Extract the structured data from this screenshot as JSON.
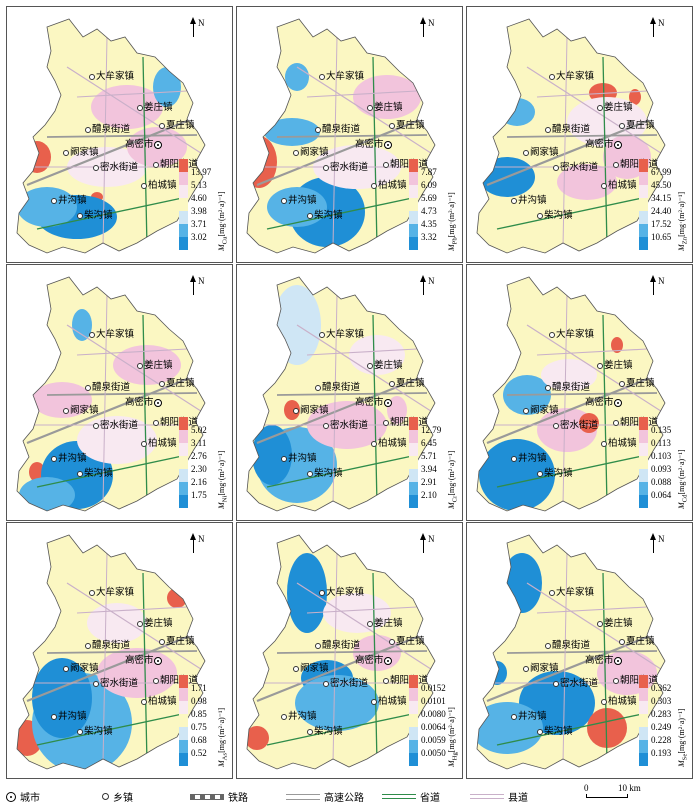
{
  "panels": [
    {
      "element": "Cu",
      "unit": "[mg·(m²·a)⁻¹]",
      "levels": [
        "13.97",
        "5.13",
        "4.60",
        "3.98",
        "3.71",
        "3.02"
      ]
    },
    {
      "element": "Pb",
      "unit": "[mg·(m²·a)⁻¹]",
      "levels": [
        "7.87",
        "6.09",
        "5.69",
        "4.73",
        "4.35",
        "3.32"
      ]
    },
    {
      "element": "Zn",
      "unit": "[mg·(m²·a)⁻¹]",
      "levels": [
        "67.99",
        "45.50",
        "34.15",
        "24.40",
        "17.52",
        "10.65"
      ]
    },
    {
      "element": "Ni",
      "unit": "[mg·(m²·a)⁻¹]",
      "levels": [
        "5.02",
        "3.11",
        "2.76",
        "2.30",
        "2.16",
        "1.75"
      ]
    },
    {
      "element": "Cr",
      "unit": "[mg·(m²·a)⁻¹]",
      "levels": [
        "12.79",
        "6.45",
        "5.71",
        "3.94",
        "2.91",
        "2.10"
      ]
    },
    {
      "element": "Cd",
      "unit": "[mg·(m²·a)⁻¹]",
      "levels": [
        "0.135",
        "0.113",
        "0.103",
        "0.093",
        "0.088",
        "0.064"
      ]
    },
    {
      "element": "As",
      "unit": "[mg·(m²·a)⁻¹]",
      "levels": [
        "1.71",
        "0.98",
        "0.85",
        "0.75",
        "0.68",
        "0.52"
      ]
    },
    {
      "element": "Hg",
      "unit": "[mg·(m²·a)⁻¹]",
      "levels": [
        "0.0152",
        "0.0101",
        "0.0080",
        "0.0064",
        "0.0059",
        "0.0050"
      ]
    },
    {
      "element": "Se",
      "unit": "[mg·(m²·a)⁻¹]",
      "levels": [
        "0.362",
        "0.303",
        "0.283",
        "0.249",
        "0.228",
        "0.193"
      ]
    }
  ],
  "legend_colors": [
    "#e8604c",
    "#f2c4dc",
    "#f8e9f1",
    "#fbf7c2",
    "#cfe6f5",
    "#56b3e6",
    "#1f8fd6"
  ],
  "places": {
    "north": "N",
    "danian": "大牟家镇",
    "jiangzhuang": "姜庄镇",
    "xiazhuang": "夏庄镇",
    "liquan": "醴泉街道",
    "gaomi": "高密市",
    "kanjia": "阚家镇",
    "chaoyang": "朝阳街道",
    "mishui": "密水街道",
    "baicheng": "柏城镇",
    "jinggou": "井沟镇",
    "chaigou": "柴沟镇"
  },
  "bottom_legend": {
    "city": "城市",
    "town": "乡镇",
    "railway": "铁路",
    "highway": "高速公路",
    "provincial": "省道",
    "county": "县道",
    "scale_zero": "0",
    "scale_end": "10 km"
  }
}
